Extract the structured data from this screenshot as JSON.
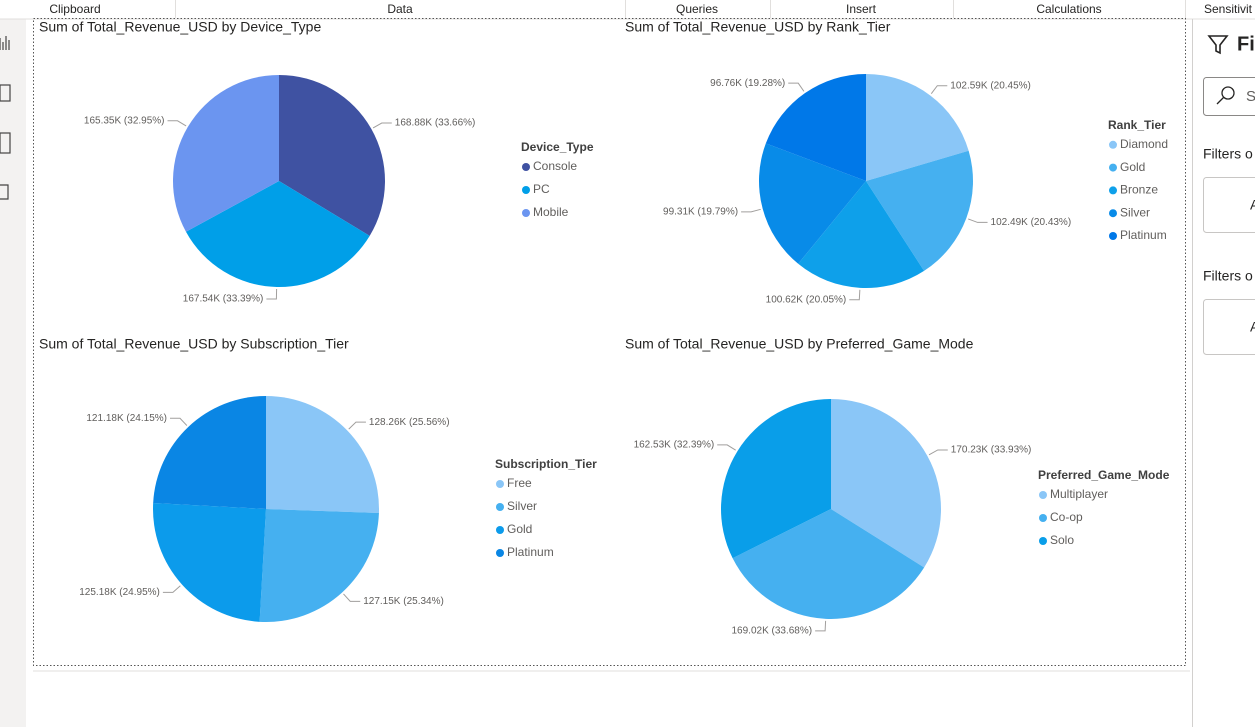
{
  "ribbon": [
    "Clipboard",
    "Data",
    "Queries",
    "Insert",
    "Calculations",
    "Sensitivit"
  ],
  "filters_pane": {
    "title": "Fi",
    "search": "S",
    "sections": [
      {
        "title": "Filters o",
        "box": "A"
      },
      {
        "title": "Filters o",
        "box": "A"
      }
    ]
  },
  "chart_data": [
    {
      "type": "pie",
      "title": "Sum of Total_Revenue_USD by Device_Type",
      "legend_title": "Device_Type",
      "categories": [
        "Console",
        "PC",
        "Mobile"
      ],
      "values": [
        168880,
        167540,
        165350
      ],
      "value_labels": [
        "168.88K (33.66%)",
        "167.54K (33.39%)",
        "165.35K (32.95%)"
      ],
      "colors": [
        "#3f52a2",
        "#009fe8",
        "#6b95f0"
      ]
    },
    {
      "type": "pie",
      "title": "Sum of Total_Revenue_USD by Rank_Tier",
      "legend_title": "Rank_Tier",
      "categories": [
        "Diamond",
        "Gold",
        "Bronze",
        "Silver",
        "Platinum"
      ],
      "values": [
        102590,
        102490,
        100620,
        99310,
        96760
      ],
      "value_labels": [
        "102.59K (20.45%)",
        "102.49K (20.43%)",
        "100.62K (20.05%)",
        "99.31K (19.79%)",
        "96.76K (19.28%)"
      ],
      "colors": [
        "#8ac6f7",
        "#45b0f0",
        "#0ea0ea",
        "#088be8",
        "#0078e8"
      ]
    },
    {
      "type": "pie",
      "title": "Sum of Total_Revenue_USD by Subscription_Tier",
      "legend_title": "Subscription_Tier",
      "categories": [
        "Free",
        "Silver",
        "Gold",
        "Platinum"
      ],
      "values": [
        128260,
        127150,
        125180,
        121180
      ],
      "value_labels": [
        "128.26K (25.56%)",
        "127.15K (25.34%)",
        "125.18K (24.95%)",
        "121.18K (24.15%)"
      ],
      "colors": [
        "#8ac6f7",
        "#45b0f0",
        "#0c9beb",
        "#0a86e4"
      ]
    },
    {
      "type": "pie",
      "title": "Sum of Total_Revenue_USD by Preferred_Game_Mode",
      "legend_title": "Preferred_Game_Mode",
      "categories": [
        "Multiplayer",
        "Co-op",
        "Solo"
      ],
      "values": [
        170230,
        169020,
        162530
      ],
      "value_labels": [
        "170.23K (33.93%)",
        "169.02K (33.68%)",
        "162.53K (32.39%)"
      ],
      "colors": [
        "#8ac6f7",
        "#45b0f0",
        "#099ee9"
      ]
    }
  ]
}
